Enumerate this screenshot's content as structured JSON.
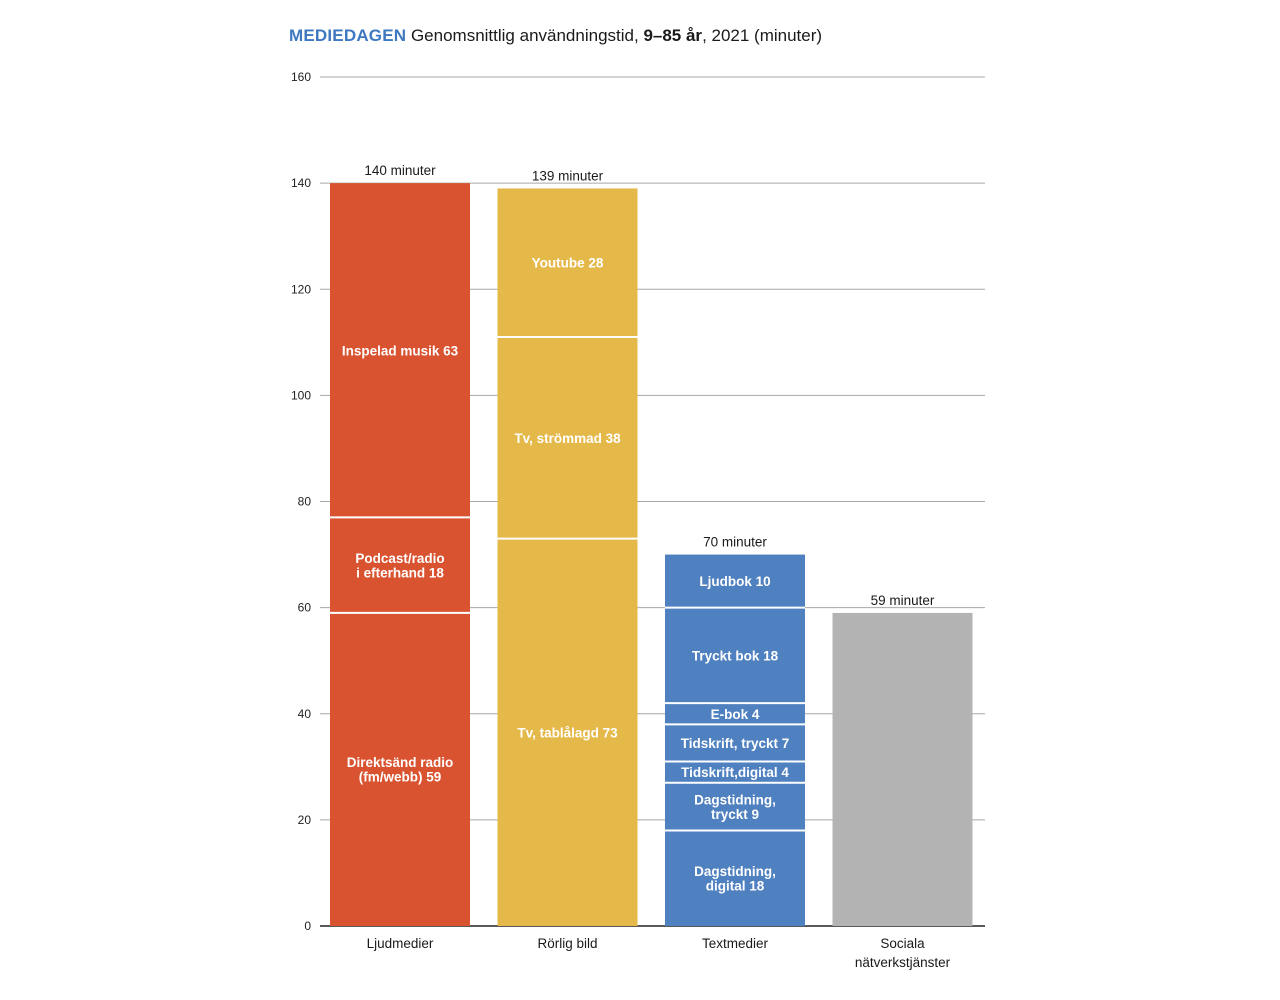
{
  "chart_data": {
    "type": "bar",
    "stacked": true,
    "title_parts": {
      "brand": "MEDIEDAGEN",
      "text1": " Genomsnittlig användningstid, ",
      "bold": "9–85 år",
      "text2": ", 2021 (minuter)"
    },
    "xlabel": "",
    "ylabel": "",
    "ylim": [
      0,
      160
    ],
    "yticks": [
      0,
      20,
      40,
      60,
      80,
      100,
      120,
      140,
      160
    ],
    "grid": true,
    "categories": [
      {
        "name": [
          "Ljudmedier"
        ],
        "total": 140,
        "total_label": "140 minuter",
        "color": "#d95330",
        "segments": [
          {
            "label": [
              "Direktsänd radio",
              "(fm/webb) 59"
            ],
            "value": 59
          },
          {
            "label": [
              "Podcast/radio",
              "i efterhand 18"
            ],
            "value": 18
          },
          {
            "label": [
              "Inspelad musik 63"
            ],
            "value": 63
          }
        ]
      },
      {
        "name": [
          "Rörlig bild"
        ],
        "total": 139,
        "total_label": "139 minuter",
        "color": "#e5b949",
        "segments": [
          {
            "label": [
              "Tv, tablålagd 73"
            ],
            "value": 73
          },
          {
            "label": [
              "Tv, strömmad 38"
            ],
            "value": 38
          },
          {
            "label": [
              "Youtube 28"
            ],
            "value": 28
          }
        ]
      },
      {
        "name": [
          "Textmedier"
        ],
        "total": 70,
        "total_label": "70 minuter",
        "color": "#4f81c0",
        "segments": [
          {
            "label": [
              "Dagstidning,",
              "digital 18"
            ],
            "value": 18
          },
          {
            "label": [
              "Dagstidning,",
              "tryckt 9"
            ],
            "value": 9
          },
          {
            "label": [
              "Tidskrift,digital 4"
            ],
            "value": 4
          },
          {
            "label": [
              "Tidskrift, tryckt 7"
            ],
            "value": 7
          },
          {
            "label": [
              "E-bok 4"
            ],
            "value": 4
          },
          {
            "label": [
              "Tryckt bok 18"
            ],
            "value": 18
          },
          {
            "label": [
              "Ljudbok 10"
            ],
            "value": 10
          }
        ]
      },
      {
        "name": [
          "Sociala",
          "nätverkstjänster"
        ],
        "total": 59,
        "total_label": "59 minuter",
        "color": "#b3b3b3",
        "segments": [
          {
            "label": [],
            "value": 59
          }
        ]
      }
    ],
    "colors": {
      "grid": "#a8a8a8",
      "axis": "#222222",
      "segment_label": "#ffffff",
      "divider": "#ffffff"
    }
  }
}
